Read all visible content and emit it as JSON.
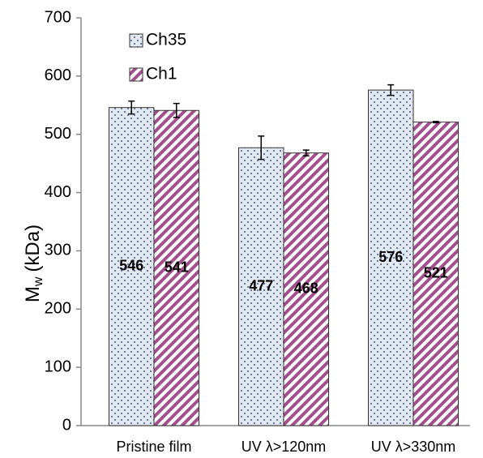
{
  "chart_data": {
    "type": "bar",
    "y_label": "M",
    "y_label_sub": "w",
    "y_label_unit": "(kDa)",
    "categories": [
      "Pristine film",
      "UV  λ>120nm",
      "UV λ>330nm"
    ],
    "series": [
      {
        "name": "Ch35",
        "color": "#5a6f9a",
        "background": "#e3e9f1",
        "pattern": "dots",
        "values": [
          546,
          477,
          576
        ],
        "errors": [
          11,
          20,
          9
        ]
      },
      {
        "name": "Ch1",
        "color": "#a24f8c",
        "background": "#ffffff",
        "pattern": "hatch",
        "values": [
          541,
          468,
          521
        ],
        "errors": [
          12,
          5,
          1
        ]
      }
    ],
    "ylim": [
      0,
      700
    ],
    "yticks": [
      0,
      100,
      200,
      300,
      400,
      500,
      600,
      700
    ],
    "grid": false,
    "legend": "upper left"
  }
}
